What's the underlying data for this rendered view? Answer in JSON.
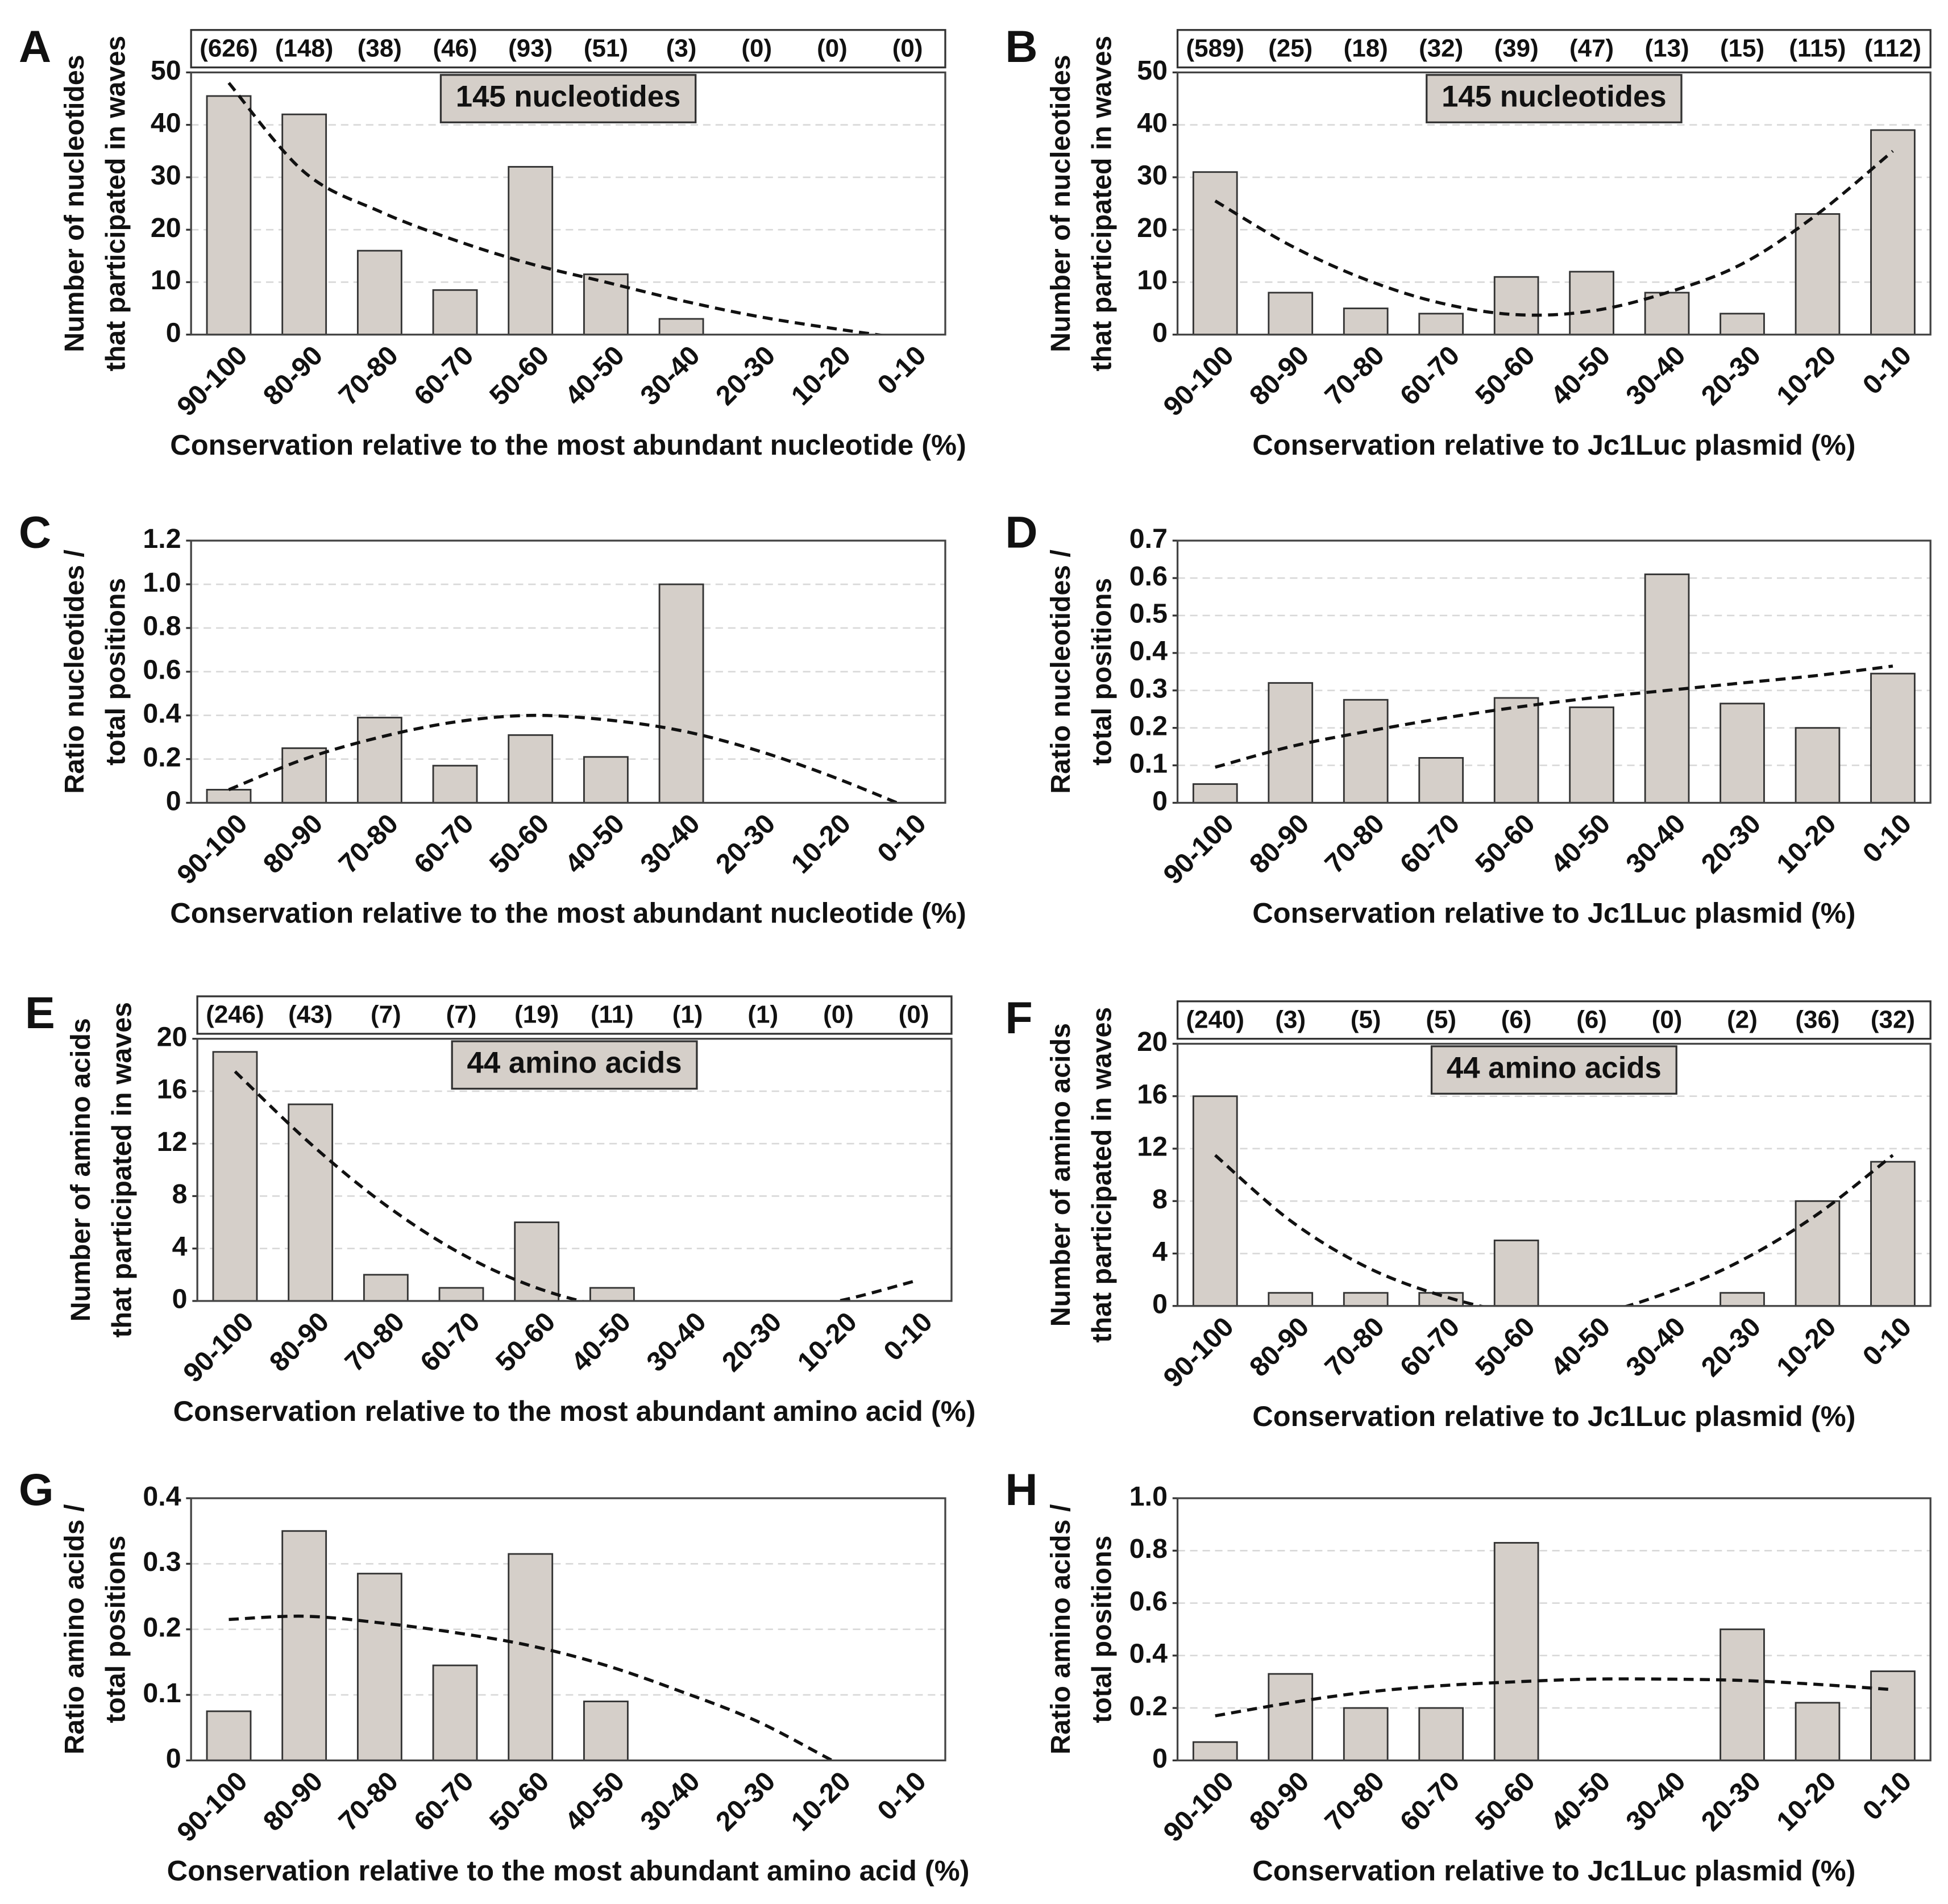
{
  "chart_data": [
    {
      "type": "bar",
      "panel": "A",
      "annotation": "145 nucleotides",
      "counts": {
        "values": [
          626,
          148,
          38,
          46,
          93,
          51,
          3,
          0,
          0,
          0
        ],
        "value_labels": [
          "(626)",
          "(148)",
          "(38)",
          "(46)",
          "(93)",
          "(51)",
          "(3)",
          "(0)",
          "(0)",
          "(0)"
        ]
      },
      "ylabel": [
        "Number of nucleotides",
        "that participated in waves"
      ],
      "xlabel": "Conservation relative to the most abundant nucleotide (%)",
      "categories": [
        "90-100",
        "80-90",
        "70-80",
        "60-70",
        "50-60",
        "40-50",
        "30-40",
        "20-30",
        "10-20",
        "0-10"
      ],
      "values": [
        45.5,
        42,
        16,
        8.5,
        32,
        11.5,
        3,
        0,
        0,
        0
      ],
      "color": "#d5cfc9",
      "trend": {
        "values": [
          48,
          31,
          23.5,
          18,
          13.5,
          10,
          6.5,
          3.5,
          1.2,
          -0.8
        ],
        "color": "#111111"
      },
      "ylim": [
        0,
        50
      ],
      "yticks": [
        0,
        10,
        20,
        30,
        40,
        50
      ],
      "grid": true
    },
    {
      "type": "bar",
      "panel": "B",
      "annotation": "145 nucleotides",
      "counts": {
        "values": [
          589,
          25,
          18,
          32,
          39,
          47,
          13,
          15,
          115,
          112
        ],
        "value_labels": [
          "(589)",
          "(25)",
          "(18)",
          "(32)",
          "(39)",
          "(47)",
          "(13)",
          "(15)",
          "(115)",
          "(112)"
        ]
      },
      "ylabel": [
        "Number of nucleotides",
        "that participated in waves"
      ],
      "xlabel": "Conservation relative to Jc1Luc plasmid (%)",
      "categories": [
        "90-100",
        "80-90",
        "70-80",
        "60-70",
        "50-60",
        "40-50",
        "30-40",
        "20-30",
        "10-20",
        "0-10"
      ],
      "values": [
        31,
        8,
        5,
        4,
        11,
        12,
        8,
        4,
        23,
        39
      ],
      "color": "#d5cfc9",
      "trend": {
        "values": [
          25.5,
          17,
          10.5,
          6,
          3.8,
          4.5,
          8,
          13.5,
          23,
          35
        ],
        "color": "#111111"
      },
      "ylim": [
        0,
        50
      ],
      "yticks": [
        0,
        10,
        20,
        30,
        40,
        50
      ],
      "grid": true
    },
    {
      "type": "bar",
      "panel": "C",
      "ylabel": [
        "Ratio nucleotides /",
        "total positions"
      ],
      "xlabel": "Conservation relative to the most abundant nucleotide (%)",
      "categories": [
        "90-100",
        "80-90",
        "70-80",
        "60-70",
        "50-60",
        "40-50",
        "30-40",
        "20-30",
        "10-20",
        "0-10"
      ],
      "values": [
        0.06,
        0.25,
        0.39,
        0.17,
        0.31,
        0.21,
        1.0,
        0,
        0,
        0
      ],
      "color": "#d5cfc9",
      "trend": {
        "values": [
          0.06,
          0.2,
          0.3,
          0.37,
          0.4,
          0.38,
          0.33,
          0.24,
          0.12,
          -0.02
        ],
        "color": "#111111"
      },
      "ylim": [
        0,
        1.2
      ],
      "yticks": [
        0,
        0.2,
        0.4,
        0.6,
        0.8,
        {
          "value": 1,
          "label": "1.0"
        },
        1.2
      ],
      "grid": true
    },
    {
      "type": "bar",
      "panel": "D",
      "ylabel": [
        "Ratio nucleotides /",
        "total positions"
      ],
      "xlabel": "Conservation relative to Jc1Luc plasmid (%)",
      "categories": [
        "90-100",
        "80-90",
        "70-80",
        "60-70",
        "50-60",
        "40-50",
        "30-40",
        "20-30",
        "10-20",
        "0-10"
      ],
      "values": [
        0.05,
        0.32,
        0.275,
        0.12,
        0.28,
        0.255,
        0.61,
        0.265,
        0.2,
        0.345
      ],
      "color": "#d5cfc9",
      "trend": {
        "values": [
          0.095,
          0.15,
          0.19,
          0.225,
          0.255,
          0.28,
          0.3,
          0.32,
          0.34,
          0.365
        ],
        "color": "#111111"
      },
      "ylim": [
        0,
        0.7
      ],
      "yticks": [
        0,
        0.1,
        0.2,
        0.3,
        0.4,
        0.5,
        0.6,
        0.7
      ],
      "grid": true
    },
    {
      "type": "bar",
      "panel": "E",
      "annotation": "44 amino acids",
      "counts": {
        "values": [
          246,
          43,
          7,
          7,
          19,
          11,
          1,
          1,
          0,
          0
        ],
        "value_labels": [
          "(246)",
          "(43)",
          "(7)",
          "(7)",
          "(19)",
          "(11)",
          "(1)",
          "(1)",
          "(0)",
          "(0)"
        ]
      },
      "ylabel": [
        "Number of amino acids",
        "that participated in waves"
      ],
      "xlabel": "Conservation relative to the most abundant amino acid (%)",
      "categories": [
        "90-100",
        "80-90",
        "70-80",
        "60-70",
        "50-60",
        "40-50",
        "30-40",
        "20-30",
        "10-20",
        "0-10"
      ],
      "values": [
        19,
        15,
        2,
        1,
        6,
        1,
        0,
        0,
        0,
        0
      ],
      "color": "#d5cfc9",
      "trend": {
        "values": [
          17.5,
          12,
          7.3,
          3.6,
          1,
          -0.5,
          -1,
          -0.8,
          0,
          1.5
        ],
        "color": "#111111"
      },
      "ylim": [
        0,
        20
      ],
      "yticks": [
        0,
        4,
        8,
        12,
        16,
        20
      ],
      "grid": true
    },
    {
      "type": "bar",
      "panel": "F",
      "annotation": "44 amino acids",
      "counts": {
        "values": [
          240,
          3,
          5,
          5,
          6,
          6,
          0,
          2,
          36,
          32
        ],
        "value_labels": [
          "(240)",
          "(3)",
          "(5)",
          "(5)",
          "(6)",
          "(6)",
          "(0)",
          "(2)",
          "(36)",
          "(32)"
        ]
      },
      "ylabel": [
        "Number of amino acids",
        "that participated in waves"
      ],
      "xlabel": "Conservation relative to Jc1Luc plasmid (%)",
      "categories": [
        "90-100",
        "80-90",
        "70-80",
        "60-70",
        "50-60",
        "40-50",
        "30-40",
        "20-30",
        "10-20",
        "0-10"
      ],
      "values": [
        16,
        1,
        1,
        1,
        5,
        0,
        0,
        1,
        8,
        11
      ],
      "color": "#d5cfc9",
      "trend": {
        "values": [
          11.5,
          6.5,
          3,
          0.8,
          -0.5,
          -0.6,
          1,
          3.5,
          7,
          11.5
        ],
        "color": "#111111"
      },
      "ylim": [
        0,
        20
      ],
      "yticks": [
        0,
        4,
        8,
        12,
        16,
        20
      ],
      "grid": true
    },
    {
      "type": "bar",
      "panel": "G",
      "ylabel": [
        "Ratio amino acids /",
        "total positions"
      ],
      "xlabel": "Conservation relative to the most abundant amino acid (%)",
      "categories": [
        "90-100",
        "80-90",
        "70-80",
        "60-70",
        "50-60",
        "40-50",
        "30-40",
        "20-30",
        "10-20",
        "0-10"
      ],
      "values": [
        0.075,
        0.35,
        0.285,
        0.145,
        0.315,
        0.09,
        0,
        0,
        0,
        0
      ],
      "color": "#d5cfc9",
      "trend": {
        "values": [
          0.215,
          0.22,
          0.21,
          0.195,
          0.175,
          0.145,
          0.105,
          0.06,
          0.0,
          -0.06
        ],
        "color": "#111111"
      },
      "ylim": [
        0,
        0.4
      ],
      "yticks": [
        0,
        0.1,
        0.2,
        0.3,
        0.4
      ],
      "grid": true
    },
    {
      "type": "bar",
      "panel": "H",
      "ylabel": [
        "Ratio amino acids /",
        "total positions"
      ],
      "xlabel": "Conservation relative to Jc1Luc plasmid (%)",
      "categories": [
        "90-100",
        "80-90",
        "70-80",
        "60-70",
        "50-60",
        "40-50",
        "30-40",
        "20-30",
        "10-20",
        "0-10"
      ],
      "values": [
        0.07,
        0.33,
        0.2,
        0.2,
        0.83,
        0,
        0,
        0.5,
        0.22,
        0.34
      ],
      "color": "#d5cfc9",
      "trend": {
        "values": [
          0.17,
          0.22,
          0.26,
          0.285,
          0.3,
          0.31,
          0.31,
          0.305,
          0.29,
          0.27
        ],
        "color": "#111111"
      },
      "ylim": [
        0,
        1
      ],
      "yticks": [
        0,
        0.2,
        0.4,
        0.6,
        0.8,
        {
          "value": 1,
          "label": "1.0"
        }
      ],
      "grid": true
    }
  ]
}
